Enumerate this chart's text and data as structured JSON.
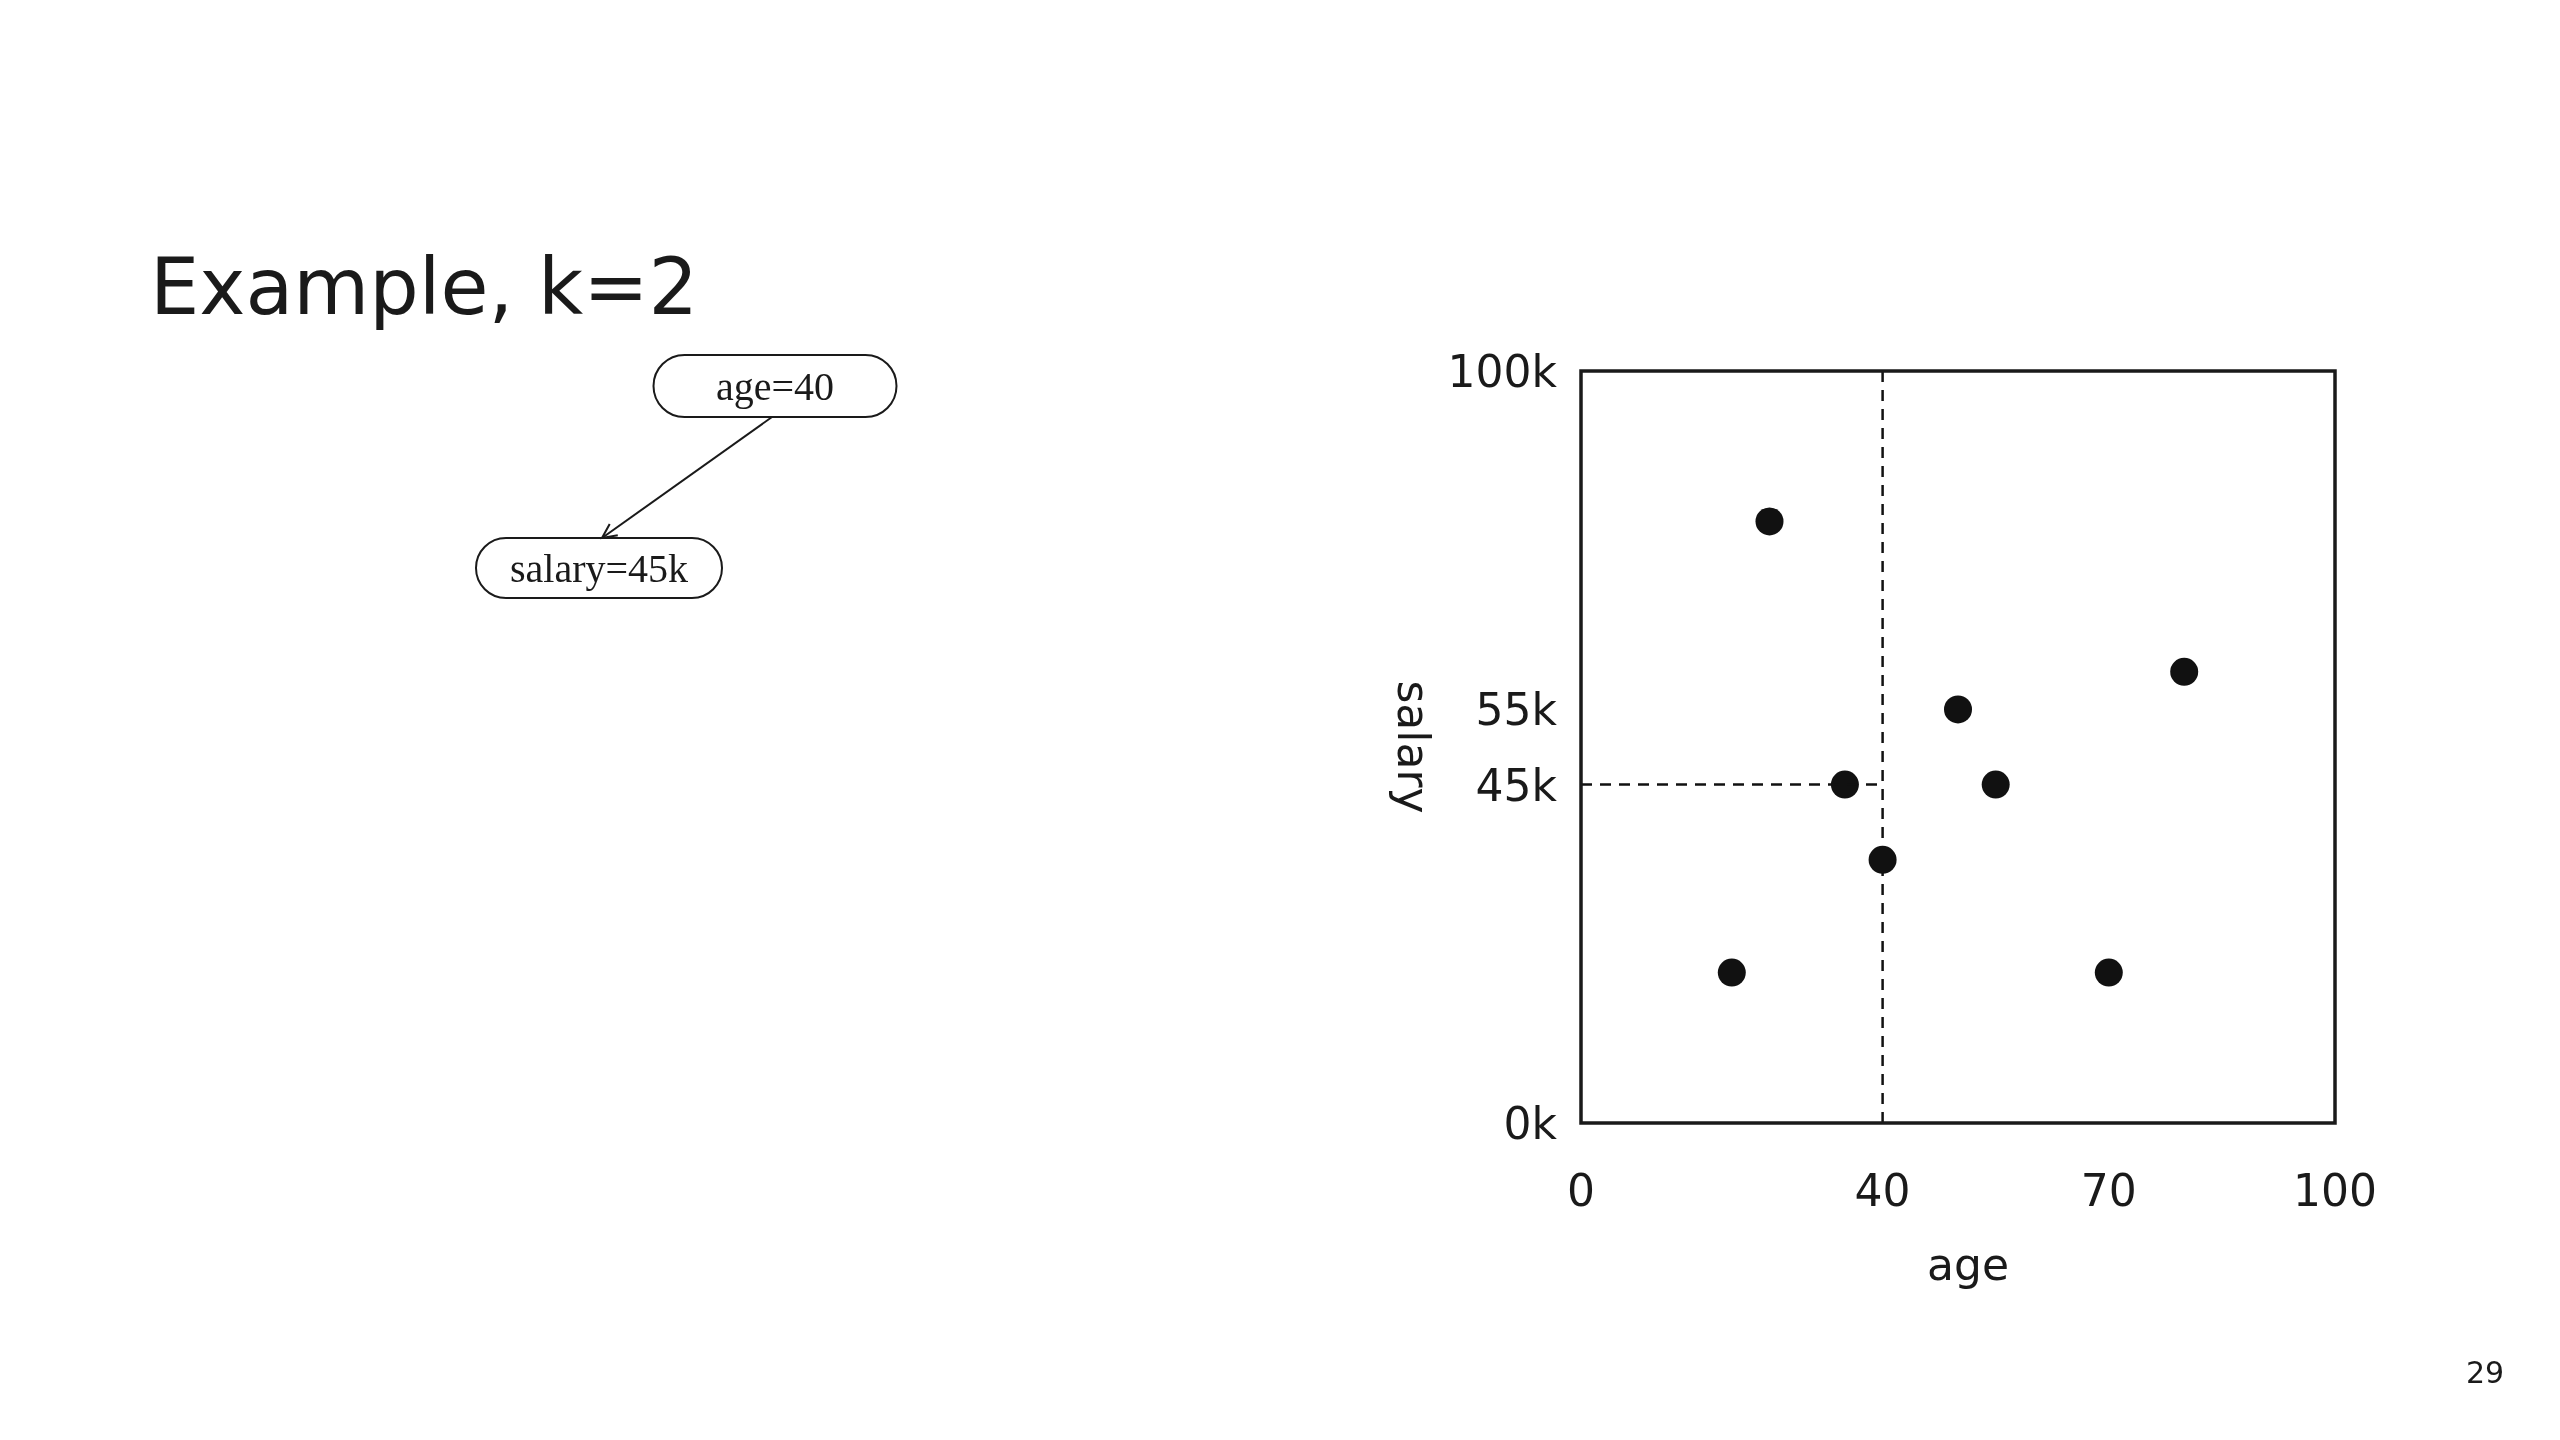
{
  "chart_data": {
    "type": "scatter",
    "title": "Example, k=2",
    "xlabel": "age",
    "ylabel": "salary",
    "xlim": [
      0,
      100
    ],
    "xticks": [
      0,
      40,
      70,
      100
    ],
    "ylim": [
      0,
      100
    ],
    "yticks": [
      {
        "value": 0,
        "label": "0k"
      },
      {
        "value": 45,
        "label": "45k"
      },
      {
        "value": 55,
        "label": "55k"
      },
      {
        "value": 100,
        "label": "100k"
      }
    ],
    "series": [
      {
        "color": "#111111",
        "marker": "circle",
        "x": [
          25,
          35,
          40,
          20,
          50,
          55,
          70,
          80
        ],
        "values": [
          80,
          45,
          35,
          20,
          55,
          45,
          20,
          60
        ]
      },
      {
        "type": "line",
        "color": "#111111",
        "line_style": "dashed",
        "marker": "none",
        "x": [
          0,
          40
        ],
        "values": [
          45,
          45
        ]
      }
    ],
    "ref_lines": [
      {
        "axis": "x",
        "value": 40,
        "line_style": "dashed",
        "color": "#111111"
      }
    ],
    "annotations": [
      "age=40",
      "salary=45k",
      "29"
    ]
  }
}
